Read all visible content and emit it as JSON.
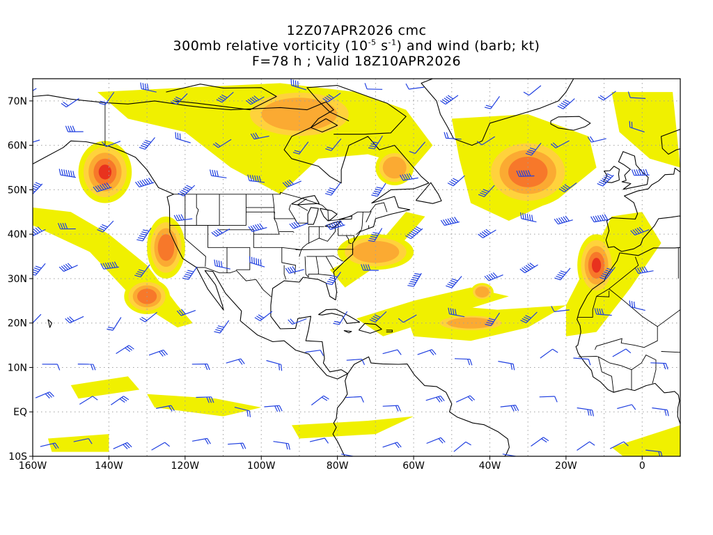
{
  "title": {
    "line1": "12Z07APR2026 cmc",
    "line2_a": "300mb relative vorticity (10",
    "line2_exp1": "-5",
    "line2_b": " s",
    "line2_exp2": "-1",
    "line2_c": ") and wind (barb; kt)",
    "line3": "F=78 h ; Valid 18Z10APR2026"
  },
  "axes": {
    "lon_min": -160,
    "lon_max": 10,
    "lat_min": -10,
    "lat_max": 75,
    "x_ticks": [
      {
        "lon": -160,
        "label": "160W"
      },
      {
        "lon": -140,
        "label": "140W"
      },
      {
        "lon": -120,
        "label": "120W"
      },
      {
        "lon": -100,
        "label": "100W"
      },
      {
        "lon": -80,
        "label": "80W"
      },
      {
        "lon": -60,
        "label": "60W"
      },
      {
        "lon": -40,
        "label": "40W"
      },
      {
        "lon": -20,
        "label": "20W"
      },
      {
        "lon": 0,
        "label": "0"
      }
    ],
    "y_ticks": [
      {
        "lat": 70,
        "label": "70N"
      },
      {
        "lat": 60,
        "label": "60N"
      },
      {
        "lat": 50,
        "label": "50N"
      },
      {
        "lat": 40,
        "label": "40N"
      },
      {
        "lat": 30,
        "label": "30N"
      },
      {
        "lat": 20,
        "label": "20N"
      },
      {
        "lat": 10,
        "label": "10N"
      },
      {
        "lat": 0,
        "label": "EQ"
      },
      {
        "lat": -10,
        "label": "10S"
      }
    ],
    "grid": true
  },
  "colors": {
    "level1": "#f0f000",
    "level2": "#ffd23c",
    "level3": "#fbaa32",
    "level4": "#f7782a",
    "level5": "#e8321e",
    "barb": "#1f3fe0",
    "coast": "#000000",
    "grid": "#a0a0a0"
  },
  "vorticity_features": [
    {
      "name": "alaska-gulf-max",
      "lon": -141,
      "lat": 54,
      "rlon": 7,
      "rlat": 7,
      "level": 5
    },
    {
      "name": "northeast-pacific-lobe",
      "lon": -125,
      "lat": 37,
      "rlon": 5,
      "rlat": 7,
      "level": 4
    },
    {
      "name": "pacific-sw-trough",
      "lon": -130,
      "lat": 26,
      "rlon": 6,
      "rlat": 4,
      "level": 4
    },
    {
      "name": "hudson-bay-arc",
      "lon": -90,
      "lat": 67,
      "rlon": 16,
      "rlat": 6,
      "level": 3
    },
    {
      "name": "labrador-lobe",
      "lon": -65,
      "lat": 55,
      "rlon": 5,
      "rlat": 4,
      "level": 3
    },
    {
      "name": "atlantic-jet-streak",
      "lon": -70,
      "lat": 36,
      "rlon": 10,
      "rlat": 4,
      "level": 3
    },
    {
      "name": "north-atlantic-max",
      "lon": -30,
      "lat": 54,
      "rlon": 12,
      "rlat": 8,
      "level": 4
    },
    {
      "name": "iberia-cutoff",
      "lon": -12,
      "lat": 33,
      "rlon": 5,
      "rlat": 7,
      "level": 5
    },
    {
      "name": "subtropical-atlantic-eddy",
      "lon": -42,
      "lat": 27,
      "rlon": 3,
      "rlat": 2,
      "level": 3
    },
    {
      "name": "tropical-atlantic-band",
      "lon": -45,
      "lat": 20,
      "rlon": 10,
      "rlat": 2,
      "level": 3
    }
  ]
}
